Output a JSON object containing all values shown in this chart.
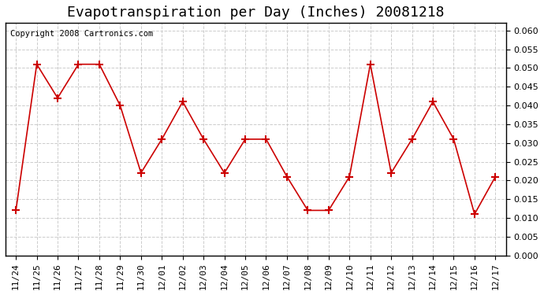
{
  "title": "Evapotranspiration per Day (Inches) 20081218",
  "copyright": "Copyright 2008 Cartronics.com",
  "x_labels": [
    "11/24",
    "11/25",
    "11/26",
    "11/27",
    "11/28",
    "11/29",
    "11/30",
    "12/01",
    "12/02",
    "12/03",
    "12/04",
    "12/05",
    "12/06",
    "12/07",
    "12/08",
    "12/09",
    "12/10",
    "12/11",
    "12/12",
    "12/13",
    "12/14",
    "12/15",
    "12/16",
    "12/17"
  ],
  "values": [
    0.012,
    0.051,
    0.042,
    0.051,
    0.051,
    0.04,
    0.022,
    0.031,
    0.041,
    0.031,
    0.022,
    0.031,
    0.031,
    0.021,
    0.012,
    0.012,
    0.021,
    0.051,
    0.022,
    0.031,
    0.041,
    0.031,
    0.011,
    0.021
  ],
  "line_color": "#cc0000",
  "marker": "+",
  "marker_size": 7,
  "ylim": [
    0.0,
    0.062
  ],
  "yticks": [
    0.0,
    0.005,
    0.01,
    0.015,
    0.02,
    0.025,
    0.03,
    0.035,
    0.04,
    0.045,
    0.05,
    0.055,
    0.06
  ],
  "background_color": "#ffffff",
  "grid_color": "#cccccc",
  "title_fontsize": 13,
  "copyright_fontsize": 7.5,
  "tick_fontsize": 8
}
